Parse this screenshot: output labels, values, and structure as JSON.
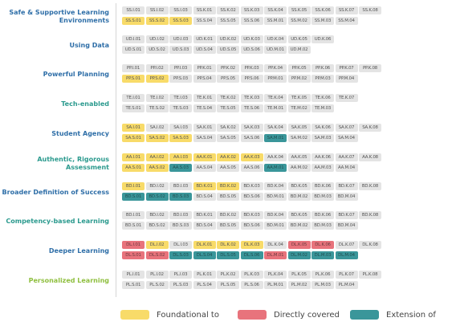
{
  "colors": {
    "foundational": "#f8db69",
    "directly_covered": "#e8737c",
    "extension": "#3a969a",
    "neutral_chip": "#e4e4e4"
  },
  "legend": [
    {
      "key": "f",
      "label": "Foundational to",
      "color": "#f8db69"
    },
    {
      "key": "d",
      "label": "Directly covered",
      "color": "#e8737c"
    },
    {
      "key": "e",
      "label": "Extension of",
      "color": "#3a969a"
    }
  ],
  "categories": [
    {
      "name": "Safe & Supportive Learning Environments",
      "color": "#2f6fa8",
      "rows": [
        [
          "SS.I.01",
          "SS.I.02",
          "SS.I.03",
          "SS.K.01",
          "SS.K.02",
          "SS.K.03",
          "SS.K.04",
          "SS.K.05",
          "SS.K.06",
          "SS.K.07",
          "SS.K.08"
        ],
        [
          "SS.S.01",
          "SS.S.02",
          "SS.S.03",
          "SS.S.04",
          "SS.S.05",
          "SS.S.06",
          "SS.M.01",
          "SS.M.02",
          "SS.M.03",
          "SS.M.04"
        ]
      ],
      "states": [
        [
          "",
          "",
          "",
          "",
          "",
          "",
          "",
          "",
          "",
          "",
          ""
        ],
        [
          "f",
          "f",
          "f",
          "",
          "",
          "",
          "",
          "",
          "",
          ""
        ]
      ]
    },
    {
      "name": "Using Data",
      "color": "#2f6fa8",
      "rows": [
        [
          "UD.I.01",
          "UD.I.02",
          "UD.I.03",
          "UD.K.01",
          "UD.K.02",
          "UD.K.03",
          "UD.K.04",
          "UD.K.05",
          "UD.K.06"
        ],
        [
          "UD.S.01",
          "UD.S.02",
          "UD.S.03",
          "UD.S.04",
          "UD.S.05",
          "UD.S.06",
          "UD.M.01",
          "UD.M.02"
        ]
      ],
      "states": [
        [
          "",
          "",
          "",
          "",
          "",
          "",
          "",
          "",
          ""
        ],
        [
          "",
          "",
          "",
          "",
          "",
          "",
          "",
          ""
        ]
      ]
    },
    {
      "name": "Powerful Planning",
      "color": "#2f6fa8",
      "rows": [
        [
          "PP.I.01",
          "PP.I.02",
          "PP.I.03",
          "PP.K.01",
          "PP.K.02",
          "PP.K.03",
          "PP.K.04",
          "PP.K.05",
          "PP.K.06",
          "PP.K.07",
          "PP.K.08"
        ],
        [
          "PP.S.01",
          "PP.S.02",
          "PP.S.03",
          "PP.S.04",
          "PP.S.05",
          "PP.S.06",
          "PP.M.01",
          "PP.M.02",
          "PP.M.03",
          "PP.M.04"
        ]
      ],
      "states": [
        [
          "",
          "",
          "",
          "",
          "",
          "",
          "",
          "",
          "",
          "",
          ""
        ],
        [
          "f",
          "f",
          "",
          "",
          "",
          "",
          "",
          "",
          "",
          ""
        ]
      ]
    },
    {
      "name": "Tech-enabled",
      "color": "#2b9a8e",
      "rows": [
        [
          "TE.I.01",
          "TE.I.02",
          "TE.I.03",
          "TE.K.01",
          "TE.K.02",
          "TE.K.03",
          "TE.K.04",
          "TE.K.05",
          "TE.K.06",
          "TE.K.07"
        ],
        [
          "TE.S.01",
          "TE.S.02",
          "TE.S.03",
          "TE.S.04",
          "TE.S.05",
          "TE.S.06",
          "TE.M.01",
          "TE.M.02",
          "TE.M.03"
        ]
      ],
      "states": [
        [
          "",
          "",
          "",
          "",
          "",
          "",
          "",
          "",
          "",
          ""
        ],
        [
          "",
          "",
          "",
          "",
          "",
          "",
          "",
          "",
          ""
        ]
      ]
    },
    {
      "name": "Student Agency",
      "color": "#2f6fa8",
      "rows": [
        [
          "SA.I.01",
          "SA.I.02",
          "SA.I.03",
          "SA.K.01",
          "SA.K.02",
          "SA.K.03",
          "SA.K.04",
          "SA.K.05",
          "SA.K.06",
          "SA.K.07",
          "SA.K.08"
        ],
        [
          "SA.S.01",
          "SA.S.02",
          "SA.S.03",
          "SA.S.04",
          "SA.S.05",
          "SA.S.06",
          "SA.M.01",
          "SA.M.02",
          "SA.M.03",
          "SA.M.04"
        ]
      ],
      "states": [
        [
          "f",
          "",
          "",
          "",
          "",
          "",
          "",
          "",
          "",
          "",
          ""
        ],
        [
          "f",
          "f",
          "f",
          "",
          "",
          "",
          "e",
          "",
          "",
          ""
        ]
      ]
    },
    {
      "name": "Authentic, Rigorous Assessment",
      "color": "#2b9a8e",
      "rows": [
        [
          "AA.I.01",
          "AA.I.02",
          "AA.I.03",
          "AA.K.01",
          "AA.K.02",
          "AA.K.03",
          "AA.K.04",
          "AA.K.05",
          "AA.K.06",
          "AA.K.07",
          "AA.K.08"
        ],
        [
          "AA.S.01",
          "AA.S.02",
          "AA.S.03",
          "AA.S.04",
          "AA.S.05",
          "AA.S.06",
          "AA.M.01",
          "AA.M.02",
          "AA.M.03",
          "AA.M.04"
        ]
      ],
      "states": [
        [
          "f",
          "f",
          "f",
          "f",
          "f",
          "f",
          "",
          "",
          "",
          "",
          ""
        ],
        [
          "f",
          "f",
          "e",
          "",
          "",
          "",
          "e",
          "",
          "",
          ""
        ]
      ]
    },
    {
      "name": "Broader Definition of Success",
      "color": "#2f6fa8",
      "rows": [
        [
          "BD.I.01",
          "BD.I.02",
          "BD.I.03",
          "BD.K.01",
          "BD.K.02",
          "BD.K.03",
          "BD.K.04",
          "BD.K.05",
          "BD.K.06",
          "BD.K.07",
          "BD.K.08"
        ],
        [
          "BD.S.01",
          "BD.S.02",
          "BD.S.03",
          "BD.S.04",
          "BD.S.05",
          "BD.S.06",
          "BD.M.01",
          "BD.M.02",
          "BD.M.03",
          "BD.M.04"
        ]
      ],
      "states": [
        [
          "f",
          "",
          "",
          "f",
          "f",
          "",
          "",
          "",
          "",
          "",
          ""
        ],
        [
          "e",
          "e",
          "e",
          "",
          "",
          "",
          "",
          "",
          "",
          ""
        ]
      ]
    },
    {
      "name": "Competency-based Learning",
      "color": "#2b9a8e",
      "rows": [
        [
          "BD.I.01",
          "BD.I.02",
          "BD.I.03",
          "BD.K.01",
          "BD.K.02",
          "BD.K.03",
          "BD.K.04",
          "BD.K.05",
          "BD.K.06",
          "BD.K.07",
          "BD.K.08"
        ],
        [
          "BD.S.01",
          "BD.S.02",
          "BD.S.03",
          "BD.S.04",
          "BD.S.05",
          "BD.S.06",
          "BD.M.01",
          "BD.M.02",
          "BD.M.03",
          "BD.M.04"
        ]
      ],
      "states": [
        [
          "",
          "",
          "",
          "",
          "",
          "",
          "",
          "",
          "",
          "",
          ""
        ],
        [
          "",
          "",
          "",
          "",
          "",
          "",
          "",
          "",
          "",
          ""
        ]
      ]
    },
    {
      "name": "Deeper Learning",
      "color": "#2f6fa8",
      "rows": [
        [
          "DL.I.01",
          "DL.I.02",
          "DL.I.03",
          "DL.K.01",
          "DL.K.02",
          "DL.K.03",
          "DL.K.04",
          "DL.K.05",
          "DL.K.06",
          "DL.K.07",
          "DL.K.08"
        ],
        [
          "DL.S.01",
          "DL.S.02",
          "DL.S.03",
          "DL.S.04",
          "DL.S.05",
          "DL.S.06",
          "DL.M.01",
          "DL.M.02",
          "DL.M.03",
          "DL.M.04"
        ]
      ],
      "states": [
        [
          "d",
          "f",
          "",
          "f",
          "f",
          "f",
          "",
          "d",
          "d",
          "",
          ""
        ],
        [
          "d",
          "d",
          "e",
          "e",
          "e",
          "e",
          "d",
          "e",
          "e",
          "e"
        ]
      ]
    },
    {
      "name": "Personalized Learning",
      "color": "#8fbf3f",
      "rows": [
        [
          "PL.I.01",
          "PL.I.02",
          "PL.I.03",
          "PL.K.01",
          "PL.K.02",
          "PL.K.03",
          "PL.K.04",
          "PL.K.05",
          "PL.K.06",
          "PL.K.07",
          "PL.K.08"
        ],
        [
          "PL.S.01",
          "PL.S.02",
          "PL.S.03",
          "PL.S.04",
          "PL.S.05",
          "PL.S.06",
          "PL.M.01",
          "PL.M.02",
          "PL.M.03",
          "PL.M.04"
        ]
      ],
      "states": [
        [
          "",
          "",
          "",
          "",
          "",
          "",
          "",
          "",
          "",
          "",
          ""
        ],
        [
          "",
          "",
          "",
          "",
          "",
          "",
          "",
          "",
          "",
          ""
        ]
      ]
    }
  ]
}
